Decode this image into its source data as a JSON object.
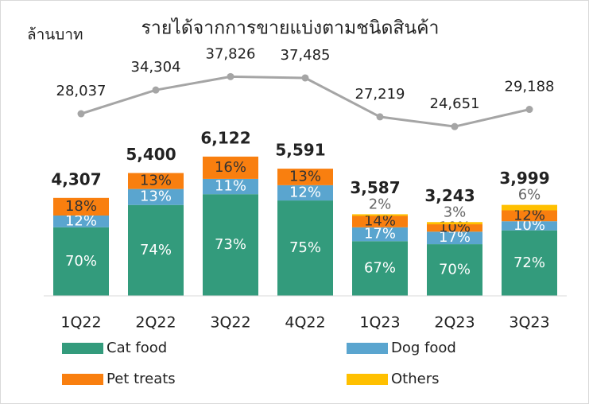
{
  "chart_data": {
    "type": "bar",
    "title": "รายได้จากการขายแบ่งตามชนิดสินค้า",
    "ylabel": "ล้านบาท",
    "categories": [
      "1Q22",
      "2Q22",
      "3Q22",
      "4Q22",
      "1Q23",
      "2Q23",
      "3Q23"
    ],
    "ylim": [
      0,
      10000
    ],
    "y2lim": [
      -20000,
      40000
    ],
    "series": [
      {
        "name": "Cat food",
        "color": "#339b7c",
        "label_color": "#ffffff",
        "values": [
          70,
          74,
          73,
          75,
          67,
          70,
          72
        ],
        "value_labels": [
          "70%",
          "74%",
          "73%",
          "75%",
          "67%",
          "70%",
          "72%"
        ]
      },
      {
        "name": "Dog food",
        "color": "#5aa5cf",
        "label_color": "#ffffff",
        "values": [
          12,
          13,
          11,
          12,
          17,
          17,
          10
        ],
        "value_labels": [
          "12%",
          "13%",
          "11%",
          "12%",
          "17%",
          "17%",
          "10%"
        ]
      },
      {
        "name": "Pet treats",
        "color": "#f97f0f",
        "label_color": "#333333",
        "values": [
          18,
          13,
          16,
          13,
          14,
          10,
          12
        ],
        "value_labels": [
          "18%",
          "13%",
          "16%",
          "13%",
          "14%",
          "10%",
          "12%"
        ]
      },
      {
        "name": "Others",
        "color": "#ffc000",
        "label_color": "#666666",
        "values": [
          null,
          null,
          null,
          null,
          2,
          3,
          6
        ],
        "value_labels": [
          null,
          null,
          null,
          null,
          "2%",
          "3%",
          "6%"
        ]
      }
    ],
    "totals": {
      "values": [
        4307,
        5400,
        6122,
        5591,
        3587,
        3243,
        3999
      ],
      "value_labels": [
        "4,307",
        "5,400",
        "6,122",
        "5,591",
        "3,587",
        "3,243",
        "3,999"
      ]
    },
    "line_series": {
      "axis": "y2",
      "color": "#a5a5a5",
      "values": [
        28037,
        34304,
        37826,
        37485,
        27219,
        24651,
        29188
      ],
      "value_labels": [
        "28,037",
        "34,304",
        "37,826",
        "37,485",
        "27,219",
        "24,651",
        "29,188"
      ]
    }
  }
}
